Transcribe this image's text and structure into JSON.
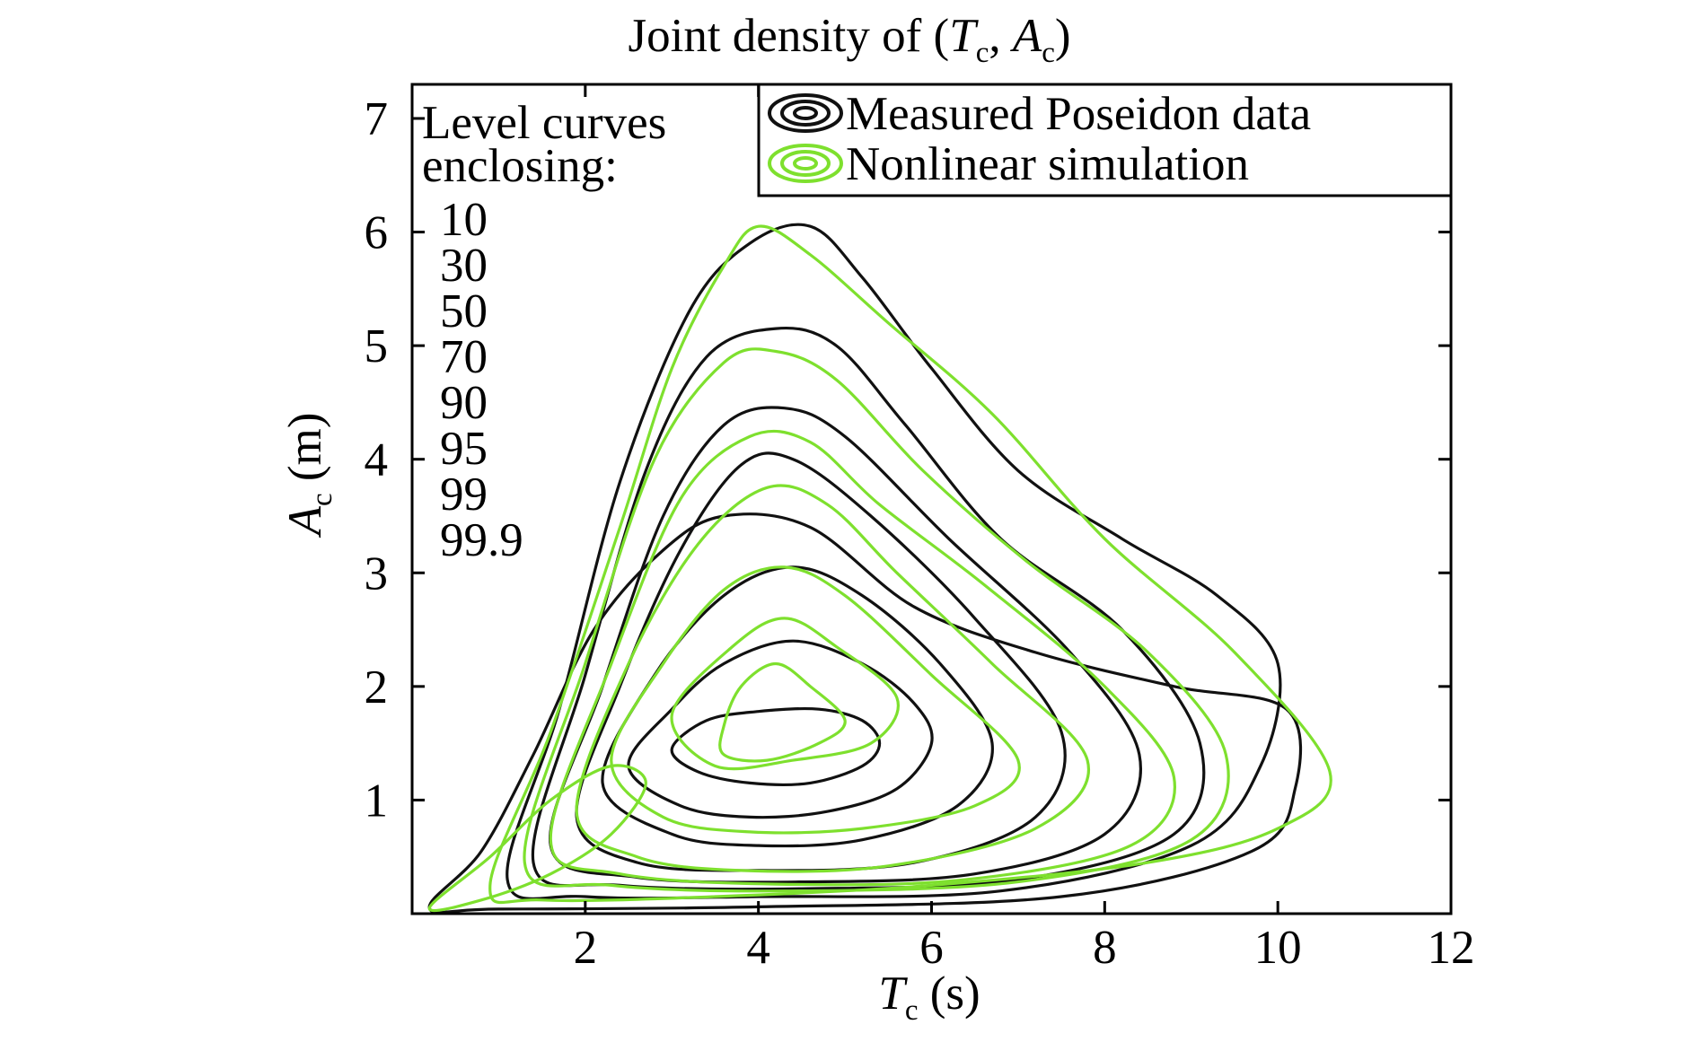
{
  "chart_data": {
    "type": "contour",
    "title": {
      "prefix": "Joint density of (",
      "t_main": "T",
      "t_sub": "c",
      "sep": ", ",
      "a_main": "A",
      "a_sub": "c",
      "suffix": ")"
    },
    "xlabel": {
      "main": "T",
      "sub": "c",
      "unit": " (s)"
    },
    "ylabel": {
      "main": "A",
      "sub": "c",
      "unit": " (m)"
    },
    "xlim": [
      0,
      12
    ],
    "ylim": [
      0,
      7.3
    ],
    "xticks": [
      "2",
      "4",
      "6",
      "8",
      "10",
      "12"
    ],
    "yticks": [
      "1",
      "2",
      "3",
      "4",
      "5",
      "6",
      "7"
    ],
    "grid": false,
    "legend": {
      "position": "top-right",
      "entries": [
        {
          "label": "Measured Poseidon data",
          "color": "#111111"
        },
        {
          "label": "Nonlinear simulation",
          "color": "#7ee02e"
        }
      ]
    },
    "level_note": {
      "heading": [
        "Level curves",
        "enclosing:"
      ],
      "levels": [
        "10",
        "30",
        "50",
        "70",
        "90",
        "95",
        "99",
        "99.9"
      ]
    },
    "series": [
      {
        "name": "Measured Poseidon data",
        "color": "#111111",
        "contours": [
          {
            "level": "10",
            "pts": [
              [
                3.0,
                1.45
              ],
              [
                3.4,
                1.7
              ],
              [
                4.0,
                1.78
              ],
              [
                4.7,
                1.8
              ],
              [
                5.2,
                1.7
              ],
              [
                5.4,
                1.5
              ],
              [
                5.2,
                1.3
              ],
              [
                4.6,
                1.15
              ],
              [
                3.9,
                1.15
              ],
              [
                3.3,
                1.25
              ]
            ]
          },
          {
            "level": "30",
            "pts": [
              [
                2.5,
                1.3
              ],
              [
                3.0,
                1.8
              ],
              [
                3.6,
                2.2
              ],
              [
                4.4,
                2.4
              ],
              [
                5.2,
                2.2
              ],
              [
                5.8,
                1.85
              ],
              [
                6.0,
                1.5
              ],
              [
                5.6,
                1.1
              ],
              [
                4.8,
                0.9
              ],
              [
                3.9,
                0.85
              ],
              [
                3.1,
                0.95
              ]
            ]
          },
          {
            "level": "50",
            "pts": [
              [
                2.2,
                1.15
              ],
              [
                2.8,
                2.1
              ],
              [
                3.6,
                2.8
              ],
              [
                4.4,
                3.05
              ],
              [
                5.2,
                2.8
              ],
              [
                6.1,
                2.2
              ],
              [
                6.7,
                1.5
              ],
              [
                6.3,
                0.95
              ],
              [
                5.2,
                0.65
              ],
              [
                4.0,
                0.6
              ],
              [
                3.0,
                0.7
              ]
            ]
          },
          {
            "level": "70",
            "pts": [
              [
                1.9,
                0.85
              ],
              [
                2.4,
                2.0
              ],
              [
                3.1,
                3.2
              ],
              [
                3.8,
                3.95
              ],
              [
                4.4,
                4.0
              ],
              [
                5.3,
                3.5
              ],
              [
                6.5,
                2.6
              ],
              [
                7.5,
                1.6
              ],
              [
                7.2,
                0.85
              ],
              [
                5.8,
                0.45
              ],
              [
                4.0,
                0.38
              ],
              [
                2.6,
                0.45
              ]
            ]
          },
          {
            "level": "90",
            "pts": [
              [
                1.6,
                0.6
              ],
              [
                2.2,
                2.0
              ],
              [
                2.9,
                3.5
              ],
              [
                3.6,
                4.3
              ],
              [
                4.3,
                4.45
              ],
              [
                5.0,
                4.2
              ],
              [
                6.2,
                3.3
              ],
              [
                7.6,
                2.3
              ],
              [
                8.4,
                1.4
              ],
              [
                8.0,
                0.7
              ],
              [
                6.5,
                0.35
              ],
              [
                4.5,
                0.28
              ],
              [
                2.6,
                0.32
              ]
            ]
          },
          {
            "level": "95",
            "pts": [
              [
                1.4,
                0.45
              ],
              [
                2.0,
                2.1
              ],
              [
                2.7,
                3.9
              ],
              [
                3.4,
                4.9
              ],
              [
                4.2,
                5.15
              ],
              [
                4.9,
                5.0
              ],
              [
                5.7,
                4.3
              ],
              [
                6.8,
                3.3
              ],
              [
                8.2,
                2.5
              ],
              [
                9.1,
                1.5
              ],
              [
                8.8,
                0.7
              ],
              [
                7.0,
                0.3
              ],
              [
                4.5,
                0.22
              ],
              [
                2.4,
                0.25
              ]
            ]
          },
          {
            "level": "99",
            "pts": [
              [
                1.1,
                0.3
              ],
              [
                1.7,
                1.8
              ],
              [
                2.4,
                3.8
              ],
              [
                3.2,
                5.3
              ],
              [
                3.9,
                5.9
              ],
              [
                4.6,
                6.05
              ],
              [
                5.2,
                5.6
              ],
              [
                6.0,
                4.8
              ],
              [
                7.0,
                3.9
              ],
              [
                8.2,
                3.3
              ],
              [
                9.3,
                2.8
              ],
              [
                10.0,
                2.2
              ],
              [
                9.8,
                1.3
              ],
              [
                9.0,
                0.6
              ],
              [
                6.8,
                0.2
              ],
              [
                4.0,
                0.15
              ],
              [
                2.0,
                0.15
              ]
            ]
          },
          {
            "level": "99.9",
            "pts": [
              [
                0.2,
                0.05
              ],
              [
                0.8,
                0.55
              ],
              [
                1.4,
                1.4
              ],
              [
                2.1,
                2.5
              ],
              [
                2.9,
                3.2
              ],
              [
                3.6,
                3.5
              ],
              [
                4.6,
                3.4
              ],
              [
                5.8,
                2.7
              ],
              [
                7.2,
                2.3
              ],
              [
                8.8,
                2.0
              ],
              [
                10.1,
                1.8
              ],
              [
                10.2,
                1.1
              ],
              [
                9.7,
                0.55
              ],
              [
                7.5,
                0.15
              ],
              [
                4.0,
                0.06
              ],
              [
                1.0,
                0.04
              ]
            ]
          }
        ]
      },
      {
        "name": "Nonlinear simulation",
        "color": "#7ee02e",
        "contours": [
          {
            "level": "10",
            "pts": [
              [
                3.6,
                1.65
              ],
              [
                3.8,
                2.0
              ],
              [
                4.2,
                2.2
              ],
              [
                4.6,
                2.0
              ],
              [
                5.0,
                1.7
              ],
              [
                4.7,
                1.5
              ],
              [
                4.1,
                1.35
              ],
              [
                3.6,
                1.4
              ]
            ]
          },
          {
            "level": "30",
            "pts": [
              [
                3.0,
                1.75
              ],
              [
                3.7,
                2.35
              ],
              [
                4.3,
                2.6
              ],
              [
                4.9,
                2.35
              ],
              [
                5.6,
                1.9
              ],
              [
                5.3,
                1.5
              ],
              [
                4.4,
                1.35
              ],
              [
                3.5,
                1.3
              ]
            ]
          },
          {
            "level": "50",
            "pts": [
              [
                2.3,
                1.35
              ],
              [
                2.9,
                2.2
              ],
              [
                3.6,
                2.85
              ],
              [
                4.3,
                3.05
              ],
              [
                5.0,
                2.8
              ],
              [
                6.0,
                2.1
              ],
              [
                7.0,
                1.35
              ],
              [
                6.5,
                0.95
              ],
              [
                5.2,
                0.75
              ],
              [
                3.9,
                0.72
              ],
              [
                2.9,
                0.85
              ]
            ]
          },
          {
            "level": "70",
            "pts": [
              [
                1.9,
                0.9
              ],
              [
                2.5,
                2.2
              ],
              [
                3.3,
                3.25
              ],
              [
                4.1,
                3.75
              ],
              [
                4.8,
                3.6
              ],
              [
                5.6,
                3.0
              ],
              [
                6.7,
                2.2
              ],
              [
                7.8,
                1.35
              ],
              [
                7.2,
                0.75
              ],
              [
                5.5,
                0.42
              ],
              [
                3.8,
                0.38
              ],
              [
                2.6,
                0.5
              ]
            ]
          },
          {
            "level": "90",
            "pts": [
              [
                1.6,
                0.65
              ],
              [
                2.3,
                2.2
              ],
              [
                3.1,
                3.65
              ],
              [
                3.9,
                4.2
              ],
              [
                4.6,
                4.15
              ],
              [
                5.4,
                3.6
              ],
              [
                6.6,
                2.9
              ],
              [
                8.0,
                2.0
              ],
              [
                8.8,
                1.2
              ],
              [
                8.3,
                0.6
              ],
              [
                6.4,
                0.3
              ],
              [
                4.2,
                0.26
              ],
              [
                2.4,
                0.35
              ]
            ]
          },
          {
            "level": "95",
            "pts": [
              [
                1.3,
                0.45
              ],
              [
                2.0,
                2.2
              ],
              [
                2.8,
                4.0
              ],
              [
                3.6,
                4.85
              ],
              [
                4.2,
                4.95
              ],
              [
                4.9,
                4.7
              ],
              [
                5.9,
                3.9
              ],
              [
                7.1,
                3.1
              ],
              [
                8.5,
                2.3
              ],
              [
                9.4,
                1.4
              ],
              [
                9.0,
                0.65
              ],
              [
                7.0,
                0.28
              ],
              [
                4.3,
                0.2
              ],
              [
                2.3,
                0.25
              ]
            ]
          },
          {
            "level": "99",
            "pts": [
              [
                0.9,
                0.25
              ],
              [
                1.6,
                1.6
              ],
              [
                2.4,
                3.4
              ],
              [
                3.0,
                4.8
              ],
              [
                3.6,
                5.7
              ],
              [
                4.0,
                6.05
              ],
              [
                4.6,
                5.8
              ],
              [
                5.5,
                5.2
              ],
              [
                6.7,
                4.4
              ],
              [
                8.0,
                3.3
              ],
              [
                9.5,
                2.3
              ],
              [
                10.6,
                1.25
              ],
              [
                10.0,
                0.75
              ],
              [
                8.5,
                0.45
              ],
              [
                6.0,
                0.25
              ],
              [
                3.5,
                0.15
              ],
              [
                1.5,
                0.12
              ]
            ]
          },
          {
            "level": "99.9",
            "pts": [
              [
                0.2,
                0.05
              ],
              [
                0.9,
                0.5
              ],
              [
                1.6,
                1.0
              ],
              [
                2.3,
                1.3
              ],
              [
                2.7,
                1.15
              ],
              [
                2.3,
                0.7
              ],
              [
                1.6,
                0.35
              ],
              [
                0.8,
                0.12
              ]
            ]
          }
        ]
      }
    ]
  }
}
